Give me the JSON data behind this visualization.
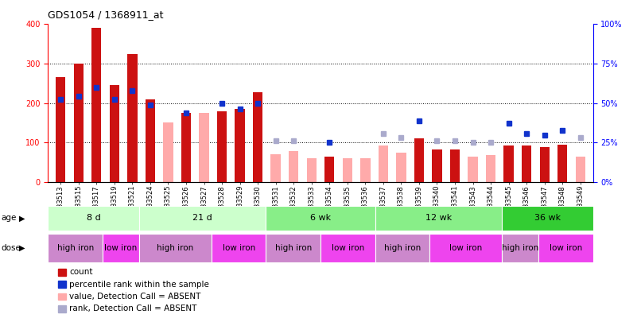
{
  "title": "GDS1054 / 1368911_at",
  "samples": [
    "GSM33513",
    "GSM33515",
    "GSM33517",
    "GSM33519",
    "GSM33521",
    "GSM33524",
    "GSM33525",
    "GSM33526",
    "GSM33527",
    "GSM33528",
    "GSM33529",
    "GSM33530",
    "GSM33531",
    "GSM33532",
    "GSM33533",
    "GSM33534",
    "GSM33535",
    "GSM33536",
    "GSM33537",
    "GSM33538",
    "GSM33539",
    "GSM33540",
    "GSM33541",
    "GSM33543",
    "GSM33544",
    "GSM33545",
    "GSM33546",
    "GSM33547",
    "GSM33548",
    "GSM33549"
  ],
  "count_red": [
    265,
    300,
    390,
    245,
    325,
    210,
    null,
    175,
    null,
    180,
    185,
    228,
    null,
    null,
    null,
    65,
    null,
    null,
    null,
    null,
    110,
    82,
    82,
    null,
    null,
    92,
    92,
    88,
    94,
    null
  ],
  "count_pink": [
    null,
    null,
    null,
    null,
    null,
    null,
    150,
    null,
    175,
    null,
    null,
    null,
    70,
    78,
    60,
    null,
    60,
    60,
    92,
    75,
    null,
    null,
    null,
    65,
    68,
    null,
    null,
    null,
    null,
    65
  ],
  "rank_blue": [
    210,
    218,
    240,
    210,
    232,
    195,
    null,
    175,
    null,
    200,
    185,
    200,
    null,
    null,
    null,
    100,
    null,
    null,
    null,
    null,
    155,
    null,
    null,
    null,
    null,
    148,
    122,
    118,
    130,
    null
  ],
  "rank_lightblue": [
    null,
    null,
    null,
    null,
    null,
    null,
    null,
    null,
    null,
    null,
    null,
    null,
    105,
    104,
    null,
    null,
    null,
    null,
    122,
    112,
    null,
    105,
    105,
    100,
    100,
    null,
    null,
    null,
    null,
    112
  ],
  "ylim_left": [
    0,
    400
  ],
  "ylim_right": [
    0,
    100
  ],
  "yticks_left": [
    0,
    100,
    200,
    300,
    400
  ],
  "yticks_right": [
    0,
    25,
    50,
    75,
    100
  ],
  "bar_color_red": "#cc1111",
  "bar_color_pink": "#ffaaaa",
  "dot_color_blue": "#1133cc",
  "dot_color_lightblue": "#aaaacc",
  "bg_color": "#ffffff",
  "age_boundaries": [
    [
      0,
      5,
      "8 d",
      "#ccffcc"
    ],
    [
      5,
      12,
      "21 d",
      "#ccffcc"
    ],
    [
      12,
      18,
      "6 wk",
      "#88ee88"
    ],
    [
      18,
      25,
      "12 wk",
      "#88ee88"
    ],
    [
      25,
      30,
      "36 wk",
      "#33cc33"
    ]
  ],
  "dose_boundaries": [
    [
      0,
      3,
      "high iron",
      "#cc88cc"
    ],
    [
      3,
      5,
      "low iron",
      "#ee44ee"
    ],
    [
      5,
      9,
      "high iron",
      "#cc88cc"
    ],
    [
      9,
      12,
      "low iron",
      "#ee44ee"
    ],
    [
      12,
      15,
      "high iron",
      "#cc88cc"
    ],
    [
      15,
      18,
      "low iron",
      "#ee44ee"
    ],
    [
      18,
      21,
      "high iron",
      "#cc88cc"
    ],
    [
      21,
      25,
      "low iron",
      "#ee44ee"
    ],
    [
      25,
      27,
      "high iron",
      "#cc88cc"
    ],
    [
      27,
      30,
      "low iron",
      "#ee44ee"
    ]
  ]
}
